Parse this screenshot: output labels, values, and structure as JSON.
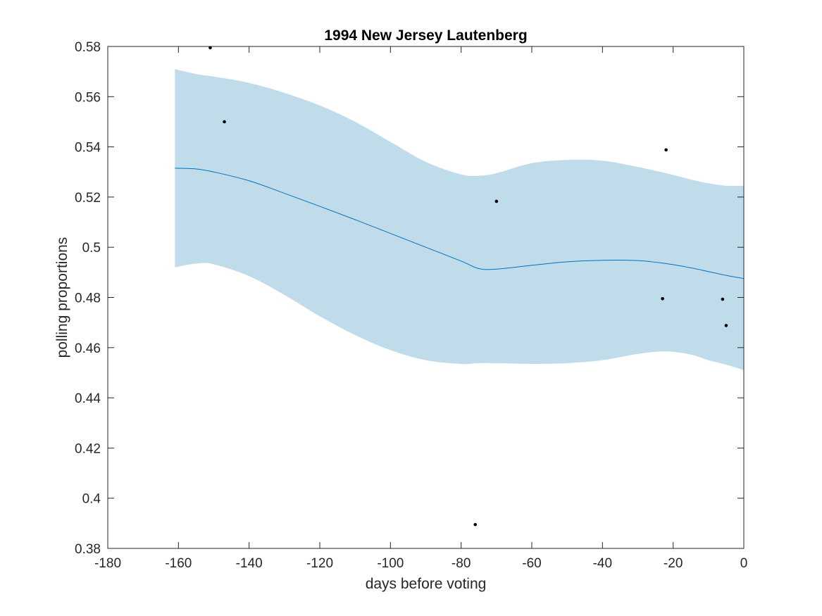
{
  "chart_data": {
    "type": "line",
    "title": "1994 New Jersey Lautenberg",
    "xlabel": "days before voting",
    "ylabel": "polling proportions",
    "xlim": [
      -180,
      0
    ],
    "ylim": [
      0.38,
      0.58
    ],
    "xticks": [
      -180,
      -160,
      -140,
      -120,
      -100,
      -80,
      -60,
      -40,
      -20,
      0
    ],
    "xtick_labels": [
      "-180",
      "-160",
      "-140",
      "-120",
      "-100",
      "-80",
      "-60",
      "-40",
      "-20",
      "0"
    ],
    "yticks": [
      0.38,
      0.4,
      0.42,
      0.44,
      0.46,
      0.48,
      0.5,
      0.52,
      0.54,
      0.56,
      0.58
    ],
    "ytick_labels": [
      "0.38",
      "0.4",
      "0.42",
      "0.44",
      "0.46",
      "0.48",
      "0.5",
      "0.52",
      "0.54",
      "0.56",
      "0.58"
    ],
    "grid": false,
    "box": true,
    "series": [
      {
        "kind": "band",
        "x": [
          -161,
          -155,
          -150,
          -140,
          -130,
          -120,
          -110,
          -100,
          -90,
          -80,
          -75,
          -70,
          -60,
          -50,
          -40,
          -30,
          -22,
          -15,
          -10,
          -5,
          0
        ],
        "upper": [
          0.571,
          0.569,
          0.568,
          0.5655,
          0.5615,
          0.5565,
          0.55,
          0.542,
          0.534,
          0.529,
          0.5285,
          0.5295,
          0.5335,
          0.5348,
          0.5345,
          0.532,
          0.5295,
          0.527,
          0.5255,
          0.5245,
          0.5245
        ],
        "lower": [
          0.492,
          0.4935,
          0.4932,
          0.4885,
          0.481,
          0.4725,
          0.465,
          0.459,
          0.455,
          0.4535,
          0.4538,
          0.4538,
          0.4535,
          0.4538,
          0.455,
          0.4575,
          0.4585,
          0.4572,
          0.455,
          0.4532,
          0.451
        ],
        "color": "#c0dceb"
      },
      {
        "kind": "line",
        "x": [
          -161,
          -155,
          -150,
          -140,
          -130,
          -120,
          -110,
          -100,
          -90,
          -80,
          -75,
          -70,
          -60,
          -50,
          -40,
          -30,
          -22,
          -15,
          -10,
          -5,
          0
        ],
        "y": [
          0.5315,
          0.5312,
          0.53,
          0.5265,
          0.5215,
          0.5163,
          0.511,
          0.5055,
          0.5,
          0.4945,
          0.4915,
          0.4913,
          0.4928,
          0.4942,
          0.4948,
          0.4947,
          0.4935,
          0.4918,
          0.4903,
          0.4888,
          0.4875
        ],
        "color": "#0072bd"
      },
      {
        "kind": "scatter",
        "x": [
          -151,
          -147,
          -76,
          -70,
          -23,
          -22,
          -6,
          -5
        ],
        "y": [
          0.5795,
          0.55,
          0.3895,
          0.5183,
          0.4795,
          0.5388,
          0.4793,
          0.4688
        ],
        "color": "#000000"
      }
    ]
  }
}
